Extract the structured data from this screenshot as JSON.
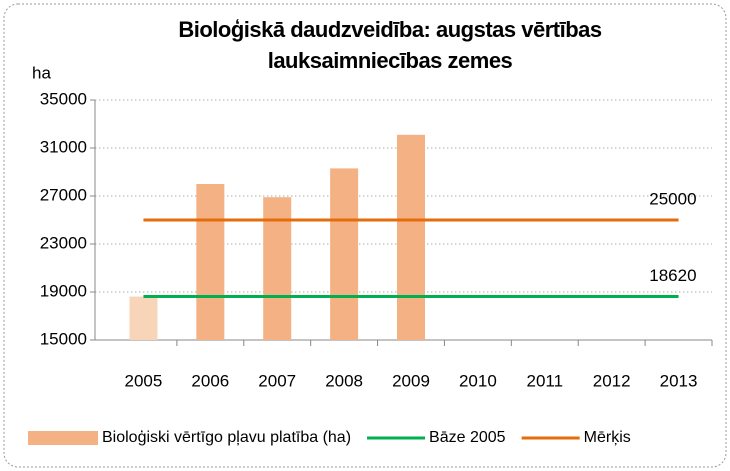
{
  "chart_data": {
    "type": "bar",
    "title": "Bioloģiskā daudzveidība: augstas vērtības lauksaimniecības zemes",
    "ylabel": "ha",
    "categories": [
      "2005",
      "2006",
      "2007",
      "2008",
      "2009",
      "2010",
      "2011",
      "2012",
      "2013"
    ],
    "ylim": [
      15000,
      35000
    ],
    "yticks": [
      15000,
      19000,
      23000,
      27000,
      31000,
      35000
    ],
    "grid": true,
    "legend": "bottom",
    "series": [
      {
        "name": "Bioloģiski vērtīgo pļavu platība (ha)",
        "type": "bar",
        "color": "#f4b183",
        "point_colors": [
          "#f8d5b8",
          "#f4b183",
          "#f4b183",
          "#f4b183",
          "#f4b183",
          "#f4b183",
          "#f4b183",
          "#f4b183",
          "#f4b183"
        ],
        "values": [
          18620,
          28000,
          26900,
          29300,
          32100,
          null,
          null,
          null,
          null
        ]
      },
      {
        "name": "Bāze 2005",
        "type": "line",
        "color": "#00b050",
        "values": [
          18620,
          18620,
          18620,
          18620,
          18620,
          18620,
          18620,
          18620,
          18620
        ]
      },
      {
        "name": "Mērķis",
        "type": "line",
        "color": "#e46c0a",
        "values": [
          25000,
          25000,
          25000,
          25000,
          25000,
          25000,
          25000,
          25000,
          25000
        ]
      }
    ]
  }
}
